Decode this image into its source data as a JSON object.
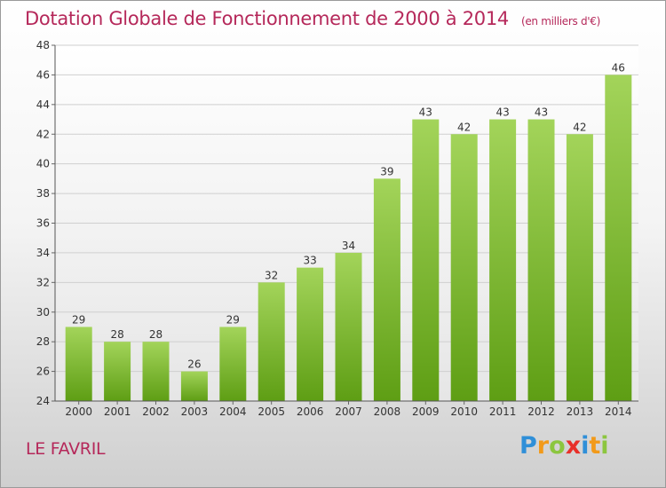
{
  "chart_data": {
    "type": "bar",
    "title": "Dotation Globale de Fonctionnement de 2000 à 2014",
    "subtitle": "(en milliers d'€)",
    "categories": [
      "2000",
      "2001",
      "2002",
      "2003",
      "2004",
      "2005",
      "2006",
      "2007",
      "2008",
      "2009",
      "2010",
      "2011",
      "2012",
      "2013",
      "2014"
    ],
    "values": [
      29,
      28,
      28,
      26,
      29,
      32,
      33,
      34,
      39,
      43,
      42,
      43,
      43,
      42,
      46
    ],
    "xlabel": "",
    "ylabel": "",
    "ylim": [
      24,
      48
    ],
    "yticks": [
      24,
      26,
      28,
      30,
      32,
      34,
      36,
      38,
      40,
      42,
      44,
      46,
      48
    ],
    "grid": true,
    "bar_color": "#7fbf2e",
    "data_labels": true
  },
  "place_name": "LE FAVRIL",
  "logo": {
    "text": "Proxiti",
    "letters": [
      {
        "ch": "P",
        "color": "#2f8fd8"
      },
      {
        "ch": "r",
        "color": "#f29a1a"
      },
      {
        "ch": "o",
        "color": "#8cc63f"
      },
      {
        "ch": "x",
        "color": "#e8302a"
      },
      {
        "ch": "i",
        "color": "#2f8fd8"
      },
      {
        "ch": "t",
        "color": "#f29a1a"
      },
      {
        "ch": "i",
        "color": "#8cc63f"
      }
    ]
  },
  "colors": {
    "title": "#b5285a",
    "bar_top": "#a3d45a",
    "bar_bottom": "#5e9e14",
    "grid": "#cfcfcf",
    "axis_text": "#333333"
  }
}
